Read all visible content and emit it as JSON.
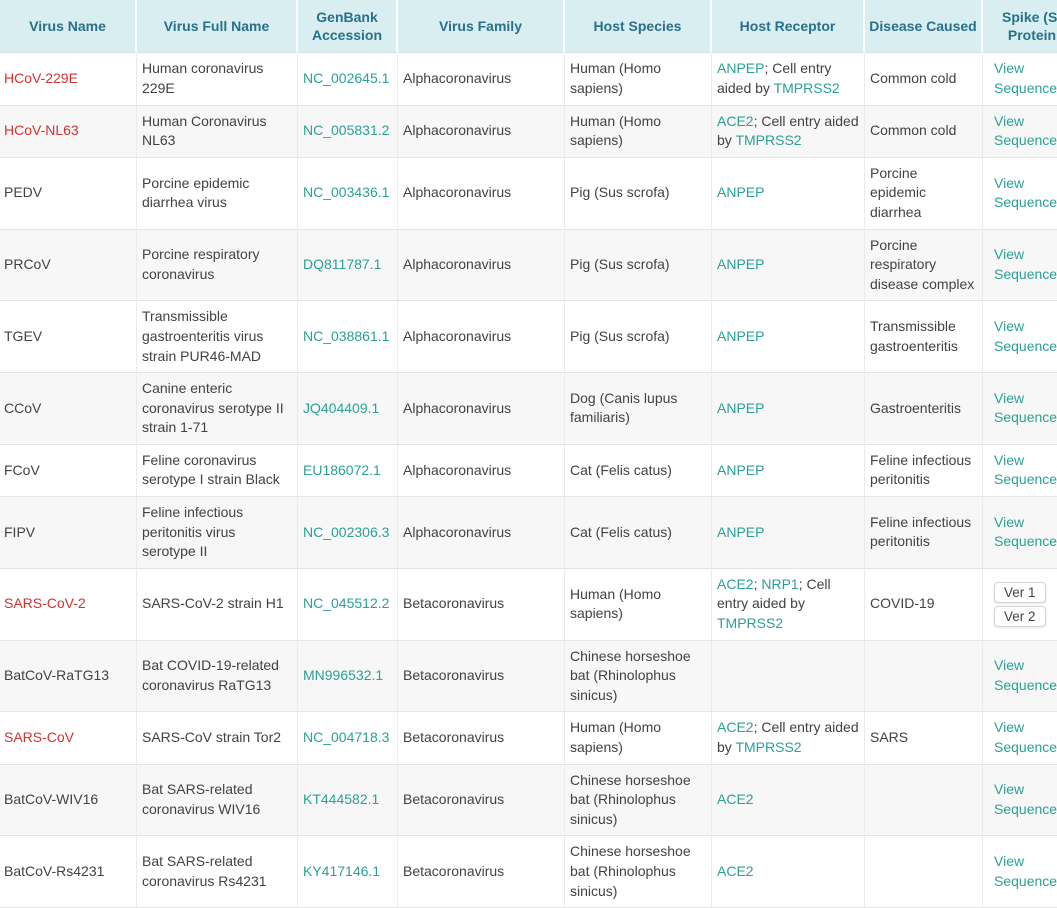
{
  "theme": {
    "header_bg": "#d8eef1",
    "header_text": "#29708b",
    "link_teal": "#2aa096",
    "virus_highlight_red": "#d13232",
    "body_text": "#424242",
    "alt_row_bg": "#f7f7f7",
    "border": "#e4e4e4"
  },
  "table": {
    "columns": [
      {
        "key": "virus_name",
        "label": "Virus Name"
      },
      {
        "key": "full_name",
        "label": "Virus Full Name"
      },
      {
        "key": "accession",
        "label": "GenBank Accession"
      },
      {
        "key": "family",
        "label": "Virus Family"
      },
      {
        "key": "host_species",
        "label": "Host Species"
      },
      {
        "key": "host_receptor",
        "label": "Host Receptor"
      },
      {
        "key": "disease",
        "label": "Disease Caused"
      },
      {
        "key": "spike",
        "label": "Spike (S) Protein"
      }
    ],
    "rows": [
      {
        "virus_name": "HCoV-229E",
        "virus_name_highlighted": true,
        "full_name": "Human coronavirus 229E",
        "accession": "NC_002645.1",
        "family": "Alphacoronavirus",
        "host_species": "Human (Homo sapiens)",
        "host_receptor": [
          {
            "text": "ANPEP",
            "link": true
          },
          {
            "text": "; Cell entry aided by ",
            "link": false
          },
          {
            "text": "TMPRSS2",
            "link": true
          }
        ],
        "disease": "Common cold",
        "spike": {
          "type": "link",
          "label": "View Sequence"
        }
      },
      {
        "virus_name": "HCoV-NL63",
        "virus_name_highlighted": true,
        "full_name": "Human Coronavirus NL63",
        "accession": "NC_005831.2",
        "family": "Alphacoronavirus",
        "host_species": "Human (Homo sapiens)",
        "host_receptor": [
          {
            "text": "ACE2",
            "link": true
          },
          {
            "text": "; Cell entry aided by ",
            "link": false
          },
          {
            "text": "TMPRSS2",
            "link": true
          }
        ],
        "disease": "Common cold",
        "spike": {
          "type": "link",
          "label": "View Sequence"
        }
      },
      {
        "virus_name": "PEDV",
        "virus_name_highlighted": false,
        "full_name": "Porcine epidemic diarrhea virus",
        "accession": "NC_003436.1",
        "family": "Alphacoronavirus",
        "host_species": "Pig (Sus scrofa)",
        "host_receptor": [
          {
            "text": "ANPEP",
            "link": true
          }
        ],
        "disease": "Porcine epidemic diarrhea",
        "spike": {
          "type": "link",
          "label": "View Sequence"
        }
      },
      {
        "virus_name": "PRCoV",
        "virus_name_highlighted": false,
        "full_name": "Porcine respiratory coronavirus",
        "accession": "DQ811787.1",
        "family": "Alphacoronavirus",
        "host_species": "Pig (Sus scrofa)",
        "host_receptor": [
          {
            "text": "ANPEP",
            "link": true
          }
        ],
        "disease": "Porcine respiratory disease complex",
        "spike": {
          "type": "link",
          "label": "View Sequence"
        }
      },
      {
        "virus_name": "TGEV",
        "virus_name_highlighted": false,
        "full_name": "Transmissible gastroenteritis virus strain PUR46-MAD",
        "accession": "NC_038861.1",
        "family": "Alphacoronavirus",
        "host_species": "Pig (Sus scrofa)",
        "host_receptor": [
          {
            "text": "ANPEP",
            "link": true
          }
        ],
        "disease": "Transmissible gastroenteritis",
        "spike": {
          "type": "link",
          "label": "View Sequence"
        }
      },
      {
        "virus_name": "CCoV",
        "virus_name_highlighted": false,
        "full_name": "Canine enteric coronavirus serotype II strain 1-71",
        "accession": "JQ404409.1",
        "family": "Alphacoronavirus",
        "host_species": "Dog (Canis lupus familiaris)",
        "host_receptor": [
          {
            "text": "ANPEP",
            "link": true
          }
        ],
        "disease": "Gastroenteritis",
        "spike": {
          "type": "link",
          "label": "View Sequence"
        }
      },
      {
        "virus_name": "FCoV",
        "virus_name_highlighted": false,
        "full_name": "Feline coronavirus serotype I strain Black",
        "accession": "EU186072.1",
        "family": "Alphacoronavirus",
        "host_species": "Cat (Felis catus)",
        "host_receptor": [
          {
            "text": "ANPEP",
            "link": true
          }
        ],
        "disease": "Feline infectious peritonitis",
        "spike": {
          "type": "link",
          "label": "View Sequence"
        }
      },
      {
        "virus_name": "FIPV",
        "virus_name_highlighted": false,
        "full_name": "Feline infectious peritonitis virus serotype II",
        "accession": "NC_002306.3",
        "family": "Alphacoronavirus",
        "host_species": "Cat (Felis catus)",
        "host_receptor": [
          {
            "text": "ANPEP",
            "link": true
          }
        ],
        "disease": "Feline infectious peritonitis",
        "spike": {
          "type": "link",
          "label": "View Sequence"
        }
      },
      {
        "virus_name": "SARS-CoV-2",
        "virus_name_highlighted": true,
        "full_name": "SARS-CoV-2 strain H1",
        "accession": "NC_045512.2",
        "family": "Betacoronavirus",
        "host_species": "Human (Homo sapiens)",
        "host_receptor": [
          {
            "text": "ACE2",
            "link": true
          },
          {
            "text": "; ",
            "link": false
          },
          {
            "text": "NRP1",
            "link": true
          },
          {
            "text": "; Cell entry aided by ",
            "link": false
          },
          {
            "text": "TMPRSS2",
            "link": true
          }
        ],
        "disease": "COVID-19",
        "spike": {
          "type": "buttons",
          "labels": [
            "Ver 1",
            "Ver 2"
          ]
        }
      },
      {
        "virus_name": "BatCoV-RaTG13",
        "virus_name_highlighted": false,
        "full_name": "Bat COVID-19-related coronavirus RaTG13",
        "accession": "MN996532.1",
        "family": "Betacoronavirus",
        "host_species": "Chinese horseshoe bat (Rhinolophus sinicus)",
        "host_receptor": [],
        "disease": "",
        "spike": {
          "type": "link",
          "label": "View Sequence"
        }
      },
      {
        "virus_name": "SARS-CoV",
        "virus_name_highlighted": true,
        "full_name": "SARS-CoV strain Tor2",
        "accession": "NC_004718.3",
        "family": "Betacoronavirus",
        "host_species": "Human (Homo sapiens)",
        "host_receptor": [
          {
            "text": "ACE2",
            "link": true
          },
          {
            "text": "; Cell entry aided by ",
            "link": false
          },
          {
            "text": "TMPRSS2",
            "link": true
          }
        ],
        "disease": "SARS",
        "spike": {
          "type": "link",
          "label": "View Sequence"
        }
      },
      {
        "virus_name": "BatCoV-WIV16",
        "virus_name_highlighted": false,
        "full_name": "Bat SARS-related coronavirus WIV16",
        "accession": "KT444582.1",
        "family": "Betacoronavirus",
        "host_species": "Chinese horseshoe bat (Rhinolophus sinicus)",
        "host_receptor": [
          {
            "text": "ACE2",
            "link": true
          }
        ],
        "disease": "",
        "spike": {
          "type": "link",
          "label": "View Sequence"
        }
      },
      {
        "virus_name": "BatCoV-Rs4231",
        "virus_name_highlighted": false,
        "full_name": "Bat SARS-related coronavirus Rs4231",
        "accession": "KY417146.1",
        "family": "Betacoronavirus",
        "host_species": "Chinese horseshoe bat (Rhinolophus sinicus)",
        "host_receptor": [
          {
            "text": "ACE2",
            "link": true
          }
        ],
        "disease": "",
        "spike": {
          "type": "link",
          "label": "View Sequence"
        }
      }
    ]
  }
}
